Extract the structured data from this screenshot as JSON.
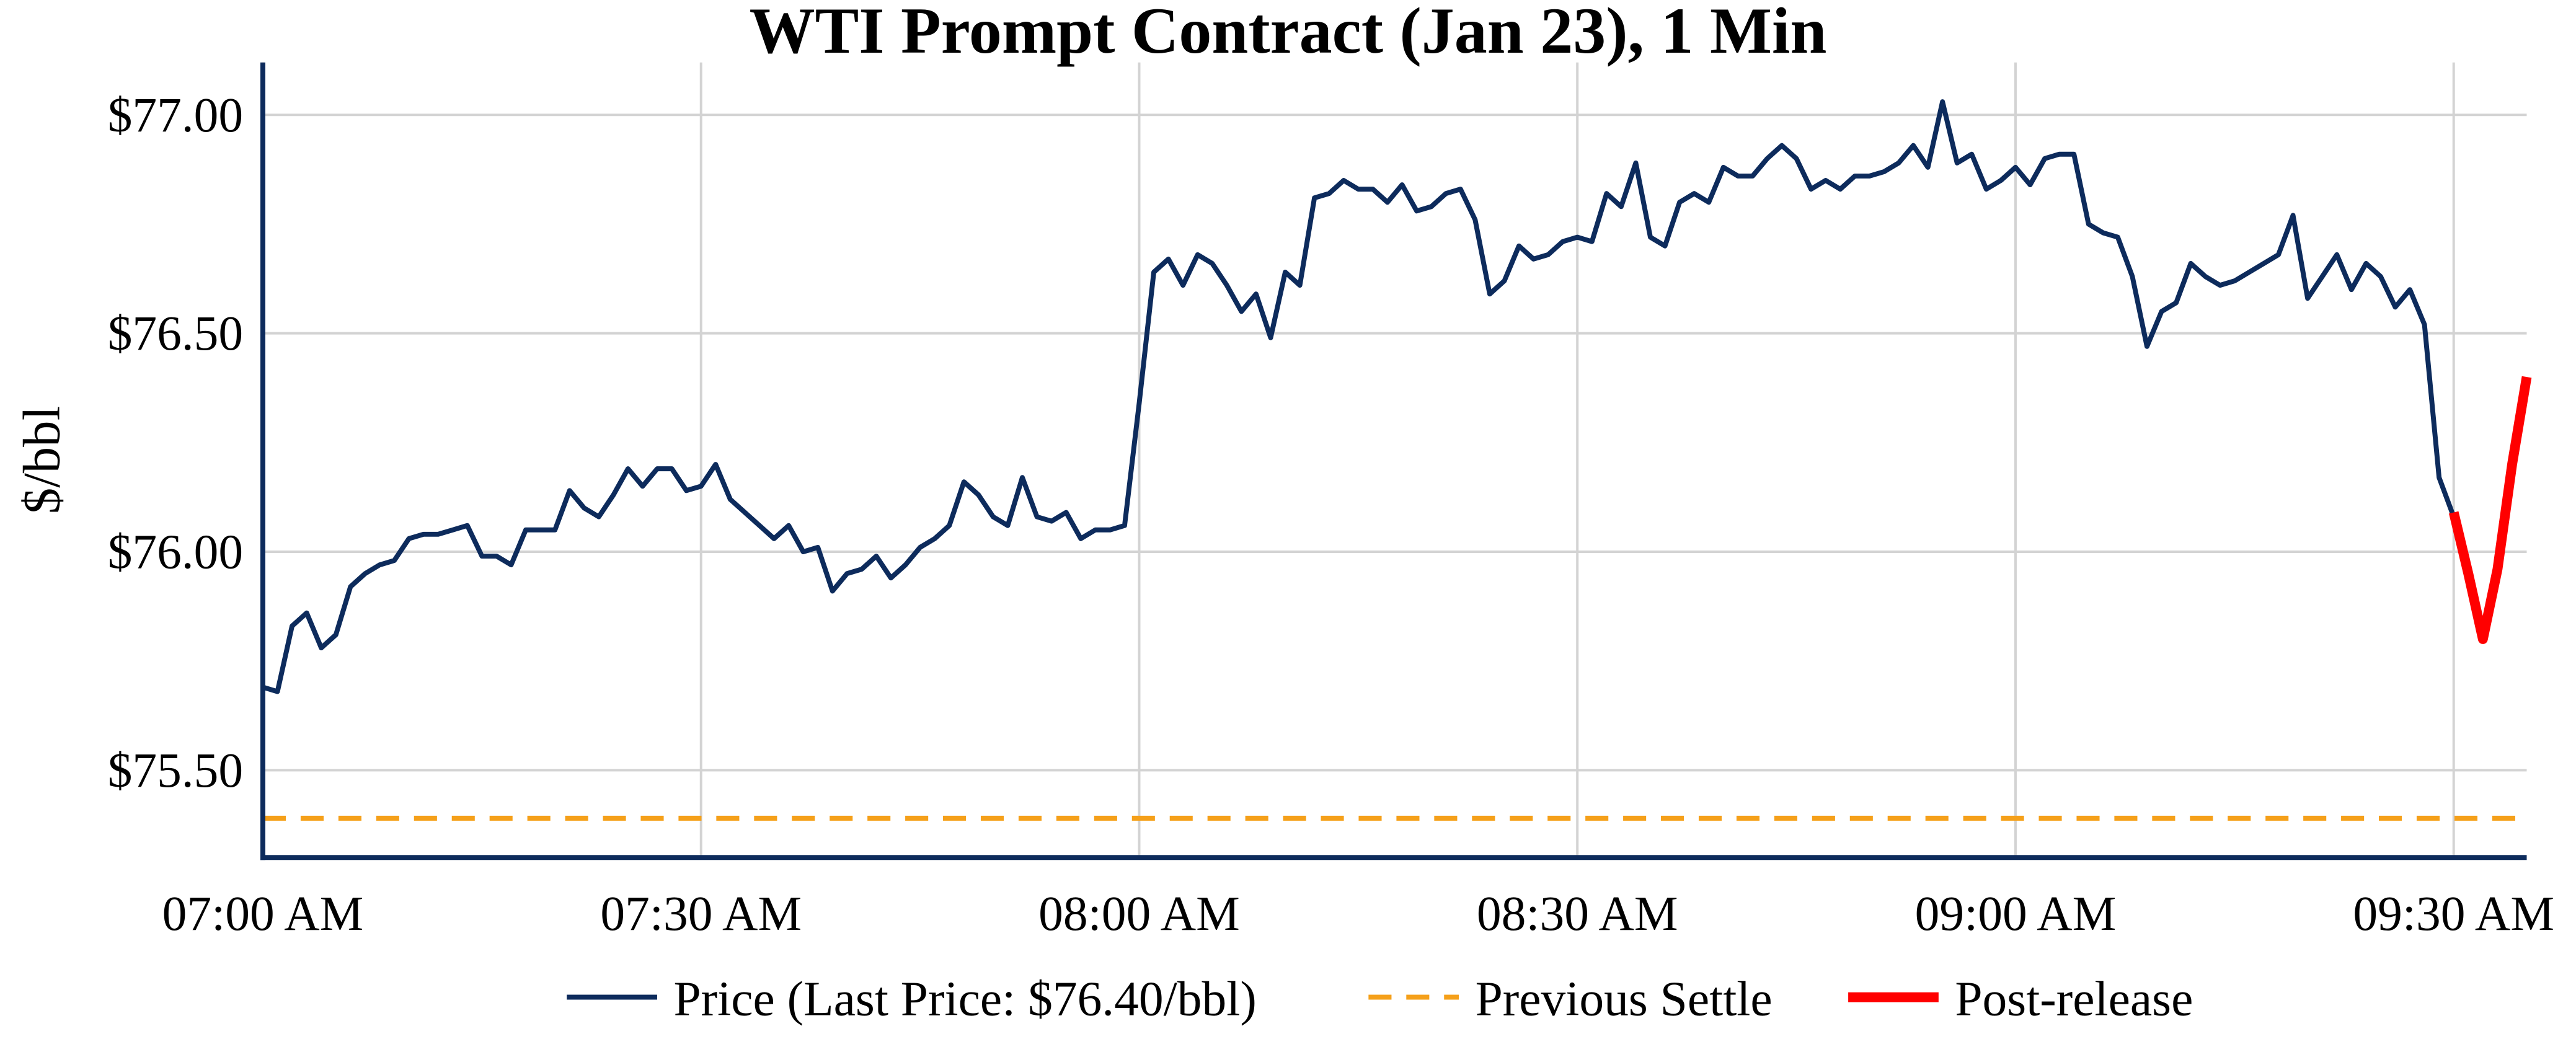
{
  "chart_data": {
    "type": "line",
    "title": "WTI Prompt Contract (Jan 23), 1 Min",
    "ylabel": "$/bbl",
    "xlim": [
      "07:00",
      "09:35"
    ],
    "xticks": [
      {
        "value": "07:00",
        "label": "07:00 AM"
      },
      {
        "value": "07:30",
        "label": "07:30 AM"
      },
      {
        "value": "08:00",
        "label": "08:00 AM"
      },
      {
        "value": "08:30",
        "label": "08:30 AM"
      },
      {
        "value": "09:00",
        "label": "09:00 AM"
      },
      {
        "value": "09:30",
        "label": "09:30 AM"
      }
    ],
    "ylim": [
      75.3,
      77.12
    ],
    "yticks": [
      {
        "value": 75.5,
        "label": "$75.50"
      },
      {
        "value": 76,
        "label": "$76.00"
      },
      {
        "value": 76.5,
        "label": "$76.50"
      },
      {
        "value": 77,
        "label": "$77.00"
      }
    ],
    "grid": true,
    "series": [
      {
        "name": "Price (Last Price: $76.40/bbl)",
        "color": "#0d2b5c",
        "width": 3,
        "x": [
          "07:00",
          "07:01",
          "07:02",
          "07:03",
          "07:04",
          "07:05",
          "07:06",
          "07:07",
          "07:08",
          "07:09",
          "07:10",
          "07:11",
          "07:12",
          "07:13",
          "07:14",
          "07:15",
          "07:16",
          "07:17",
          "07:18",
          "07:19",
          "07:20",
          "07:21",
          "07:22",
          "07:23",
          "07:24",
          "07:25",
          "07:26",
          "07:27",
          "07:28",
          "07:29",
          "07:30",
          "07:31",
          "07:32",
          "07:33",
          "07:34",
          "07:35",
          "07:36",
          "07:37",
          "07:38",
          "07:39",
          "07:40",
          "07:41",
          "07:42",
          "07:43",
          "07:44",
          "07:45",
          "07:46",
          "07:47",
          "07:48",
          "07:49",
          "07:50",
          "07:51",
          "07:52",
          "07:53",
          "07:54",
          "07:55",
          "07:56",
          "07:57",
          "07:58",
          "07:59",
          "08:00",
          "08:01",
          "08:02",
          "08:03",
          "08:04",
          "08:05",
          "08:06",
          "08:07",
          "08:08",
          "08:09",
          "08:10",
          "08:11",
          "08:12",
          "08:13",
          "08:14",
          "08:15",
          "08:16",
          "08:17",
          "08:18",
          "08:19",
          "08:20",
          "08:21",
          "08:22",
          "08:23",
          "08:24",
          "08:25",
          "08:26",
          "08:27",
          "08:28",
          "08:29",
          "08:30",
          "08:31",
          "08:32",
          "08:33",
          "08:34",
          "08:35",
          "08:36",
          "08:37",
          "08:38",
          "08:39",
          "08:40",
          "08:41",
          "08:42",
          "08:43",
          "08:44",
          "08:45",
          "08:46",
          "08:47",
          "08:48",
          "08:49",
          "08:50",
          "08:51",
          "08:52",
          "08:53",
          "08:54",
          "08:55",
          "08:56",
          "08:57",
          "08:58",
          "08:59",
          "09:00",
          "09:01",
          "09:02",
          "09:03",
          "09:04",
          "09:05",
          "09:06",
          "09:07",
          "09:08",
          "09:09",
          "09:10",
          "09:11",
          "09:12",
          "09:13",
          "09:14",
          "09:15",
          "09:16",
          "09:17",
          "09:18",
          "09:19",
          "09:20",
          "09:21",
          "09:22",
          "09:23",
          "09:24",
          "09:25",
          "09:26",
          "09:27",
          "09:28",
          "09:29",
          "09:30"
        ],
        "values": [
          75.69,
          75.68,
          75.83,
          75.86,
          75.78,
          75.81,
          75.92,
          75.95,
          75.97,
          75.98,
          76.03,
          76.04,
          76.04,
          76.05,
          76.06,
          75.99,
          75.99,
          75.97,
          76.05,
          76.05,
          76.05,
          76.14,
          76.1,
          76.08,
          76.13,
          76.19,
          76.15,
          76.19,
          76.19,
          76.14,
          76.15,
          76.2,
          76.12,
          76.09,
          76.06,
          76.03,
          76.06,
          76.0,
          76.01,
          75.91,
          75.95,
          75.96,
          75.99,
          75.94,
          75.97,
          76.01,
          76.03,
          76.06,
          76.16,
          76.13,
          76.08,
          76.06,
          76.17,
          76.08,
          76.07,
          76.09,
          76.03,
          76.05,
          76.05,
          76.06,
          76.34,
          76.64,
          76.67,
          76.61,
          76.68,
          76.66,
          76.61,
          76.55,
          76.59,
          76.49,
          76.64,
          76.61,
          76.81,
          76.82,
          76.85,
          76.83,
          76.83,
          76.8,
          76.84,
          76.78,
          76.79,
          76.82,
          76.83,
          76.76,
          76.59,
          76.62,
          76.7,
          76.67,
          76.68,
          76.71,
          76.72,
          76.71,
          76.82,
          76.79,
          76.89,
          76.72,
          76.7,
          76.8,
          76.82,
          76.8,
          76.88,
          76.86,
          76.86,
          76.9,
          76.93,
          76.9,
          76.83,
          76.85,
          76.83,
          76.86,
          76.86,
          76.87,
          76.89,
          76.93,
          76.88,
          77.03,
          76.89,
          76.91,
          76.83,
          76.85,
          76.88,
          76.84,
          76.9,
          76.91,
          76.91,
          76.75,
          76.73,
          76.72,
          76.63,
          76.47,
          76.55,
          76.57,
          76.66,
          76.63,
          76.61,
          76.62,
          76.64,
          76.66,
          76.68,
          76.77,
          76.58,
          76.63,
          76.68,
          76.6,
          76.66,
          76.63,
          76.56,
          76.6,
          76.52,
          76.17,
          76.08
        ]
      },
      {
        "name": "Previous Settle",
        "color": "#f5a01a",
        "width": 3,
        "dash": true,
        "value": 75.39
      },
      {
        "name": "Post-release",
        "color": "#ff0000",
        "width": 6,
        "x": [
          "09:30",
          "09:31",
          "09:32",
          "09:33",
          "09:34",
          "09:35"
        ],
        "values": [
          76.09,
          75.95,
          75.8,
          75.96,
          76.2,
          76.4
        ]
      }
    ]
  }
}
